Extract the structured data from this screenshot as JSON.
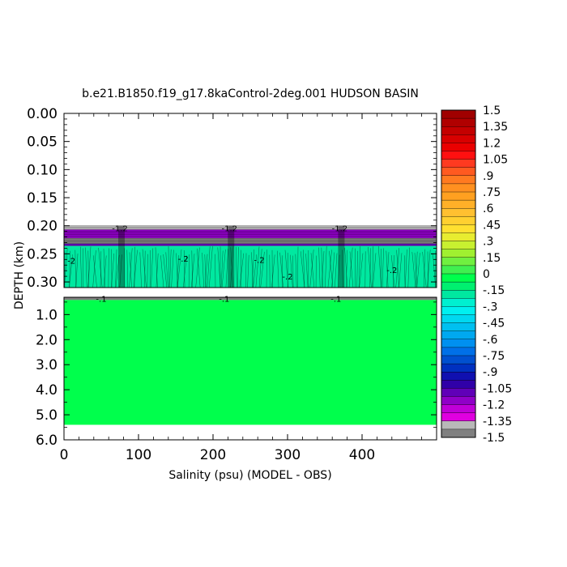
{
  "chart_data": {
    "type": "heatmap",
    "title": "b.e21.B1850.f19_g17.8kaControl-2deg.001 HUDSON BASIN",
    "xlabel": "Salinity (psu) (MODEL - OBS)",
    "ylabel": "DEPTH (km)",
    "xlim": [
      0,
      500
    ],
    "x_ticks": [
      0,
      100,
      200,
      300,
      400
    ],
    "x_tick_labels": [
      "0",
      "100",
      "200",
      "300",
      "400"
    ],
    "upper_panel": {
      "ylim": [
        0.0,
        0.31
      ],
      "y_ticks": [
        0.0,
        0.05,
        0.1,
        0.15,
        0.2,
        0.25,
        0.3
      ],
      "y_tick_labels": [
        "0.00",
        "0.05",
        "0.10",
        "0.15",
        "0.20",
        "0.25",
        "0.30"
      ],
      "layers": [
        {
          "depth_top": 0.2,
          "depth_bottom": 0.207,
          "value": -1.4
        },
        {
          "depth_top": 0.207,
          "depth_bottom": 0.222,
          "value": -1.15
        },
        {
          "depth_top": 0.222,
          "depth_bottom": 0.232,
          "value": -1.45
        },
        {
          "depth_top": 0.232,
          "depth_bottom": 0.236,
          "value": -1.1
        },
        {
          "depth_top": 0.236,
          "depth_bottom": 0.31,
          "value": -0.2
        }
      ]
    },
    "lower_panel": {
      "ylim": [
        0.31,
        6.0
      ],
      "y_ticks": [
        1.0,
        2.0,
        3.0,
        4.0,
        5.0,
        6.0
      ],
      "y_tick_labels": [
        "1.0",
        "2.0",
        "3.0",
        "4.0",
        "5.0",
        "6.0"
      ],
      "layers": [
        {
          "depth_top": 0.31,
          "depth_bottom": 0.42,
          "value": -1.45
        },
        {
          "depth_top": 0.42,
          "depth_bottom": 5.4,
          "value": 0.0
        }
      ]
    },
    "contour_labels": [
      {
        "text": "-1.2",
        "x": 75,
        "depth": 0.204
      },
      {
        "text": "-1.2",
        "x": 222,
        "depth": 0.204
      },
      {
        "text": "-1.2",
        "x": 370,
        "depth": 0.204
      },
      {
        "text": "-2",
        "x": 10,
        "depth": 0.262
      },
      {
        "text": "-.2",
        "x": 160,
        "depth": 0.258
      },
      {
        "text": "-.2",
        "x": 262,
        "depth": 0.26
      },
      {
        "text": "-.2",
        "x": 300,
        "depth": 0.29
      },
      {
        "text": "-.2",
        "x": 440,
        "depth": 0.278
      },
      {
        "text": "-.1",
        "x": 50,
        "depth": 0.36
      },
      {
        "text": "-.1",
        "x": 215,
        "depth": 0.36
      },
      {
        "text": "-.1",
        "x": 365,
        "depth": 0.36
      }
    ],
    "colorbar": {
      "labels": [
        "1.5",
        "1.35",
        "1.2",
        "1.05",
        ".9",
        ".75",
        ".6",
        ".45",
        ".3",
        ".15",
        "0",
        "-.15",
        "-.3",
        "-.45",
        "-.6",
        "-.75",
        "-.9",
        "-1.05",
        "-1.2",
        "-1.35",
        "-1.5"
      ],
      "range": [
        -1.5,
        1.5
      ],
      "levels": 40,
      "colors_top_to_bottom": [
        "#a00000",
        "#b00000",
        "#c40000",
        "#d80000",
        "#ea0000",
        "#ff1010",
        "#ff3a20",
        "#ff5a20",
        "#ff7a20",
        "#ff9020",
        "#ffa020",
        "#ffb028",
        "#ffc030",
        "#ffd030",
        "#ffe030",
        "#e8ec30",
        "#c8f030",
        "#a0f030",
        "#70f040",
        "#40f050",
        "#00ff4c",
        "#00f070",
        "#00e8a0",
        "#00f0d0",
        "#00f0f0",
        "#00d8f0",
        "#00c0f0",
        "#00a8f0",
        "#0090f0",
        "#0070e8",
        "#0050d0",
        "#0030c0",
        "#1010b0",
        "#3000a8",
        "#6000b8",
        "#9000c8",
        "#c000d8",
        "#e000e0",
        "#b8b8b8",
        "#808080"
      ]
    }
  }
}
